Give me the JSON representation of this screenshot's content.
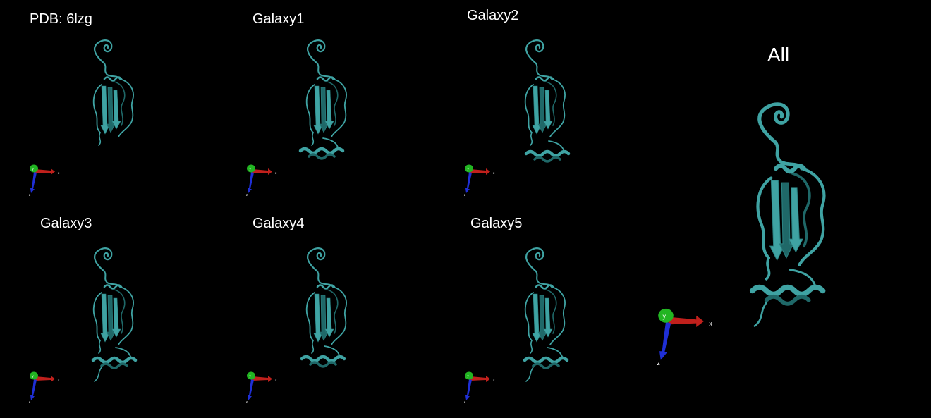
{
  "figure": {
    "background_color": "#000000",
    "ribbon_color": "#3fa3a3",
    "ribbon_dark": "#1f6868",
    "axis_colors": {
      "x": "#c0201c",
      "y": "#22b522",
      "z": "#1f2fd6"
    },
    "axis_letters": {
      "x": "x",
      "y": "y",
      "z": "z"
    },
    "panels": [
      {
        "id": "pdb",
        "title": "PDB: 6lzg"
      },
      {
        "id": "galaxy1",
        "title": "Galaxy1"
      },
      {
        "id": "galaxy2",
        "title": "Galaxy2"
      },
      {
        "id": "galaxy3",
        "title": "Galaxy3"
      },
      {
        "id": "galaxy4",
        "title": "Galaxy4"
      },
      {
        "id": "galaxy5",
        "title": "Galaxy5"
      },
      {
        "id": "all",
        "title": "All"
      }
    ]
  }
}
